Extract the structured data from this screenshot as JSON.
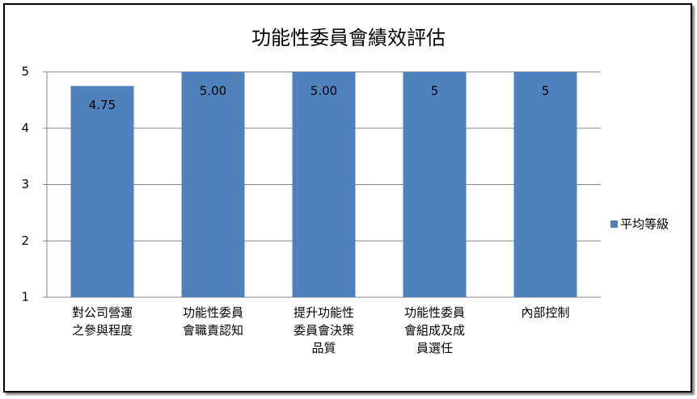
{
  "chart_data": {
    "type": "bar",
    "title": "功能性委員會績效評估",
    "categories": [
      "對公司營運之參與程度",
      "功能性委員會職責認知",
      "提升功能性委員會決策品質",
      "功能性委員會組成及成員選任",
      "內部控制"
    ],
    "series": [
      {
        "name": "平均等級",
        "color": "#4f81bd",
        "values": [
          4.75,
          5,
          5,
          5,
          5
        ],
        "value_labels": [
          "4.75",
          "5.00",
          "5.00",
          "5",
          "5"
        ]
      }
    ],
    "ylim": [
      1,
      5
    ],
    "yticks": [
      1,
      2,
      3,
      4,
      5
    ],
    "grid": true,
    "legend": "right"
  }
}
